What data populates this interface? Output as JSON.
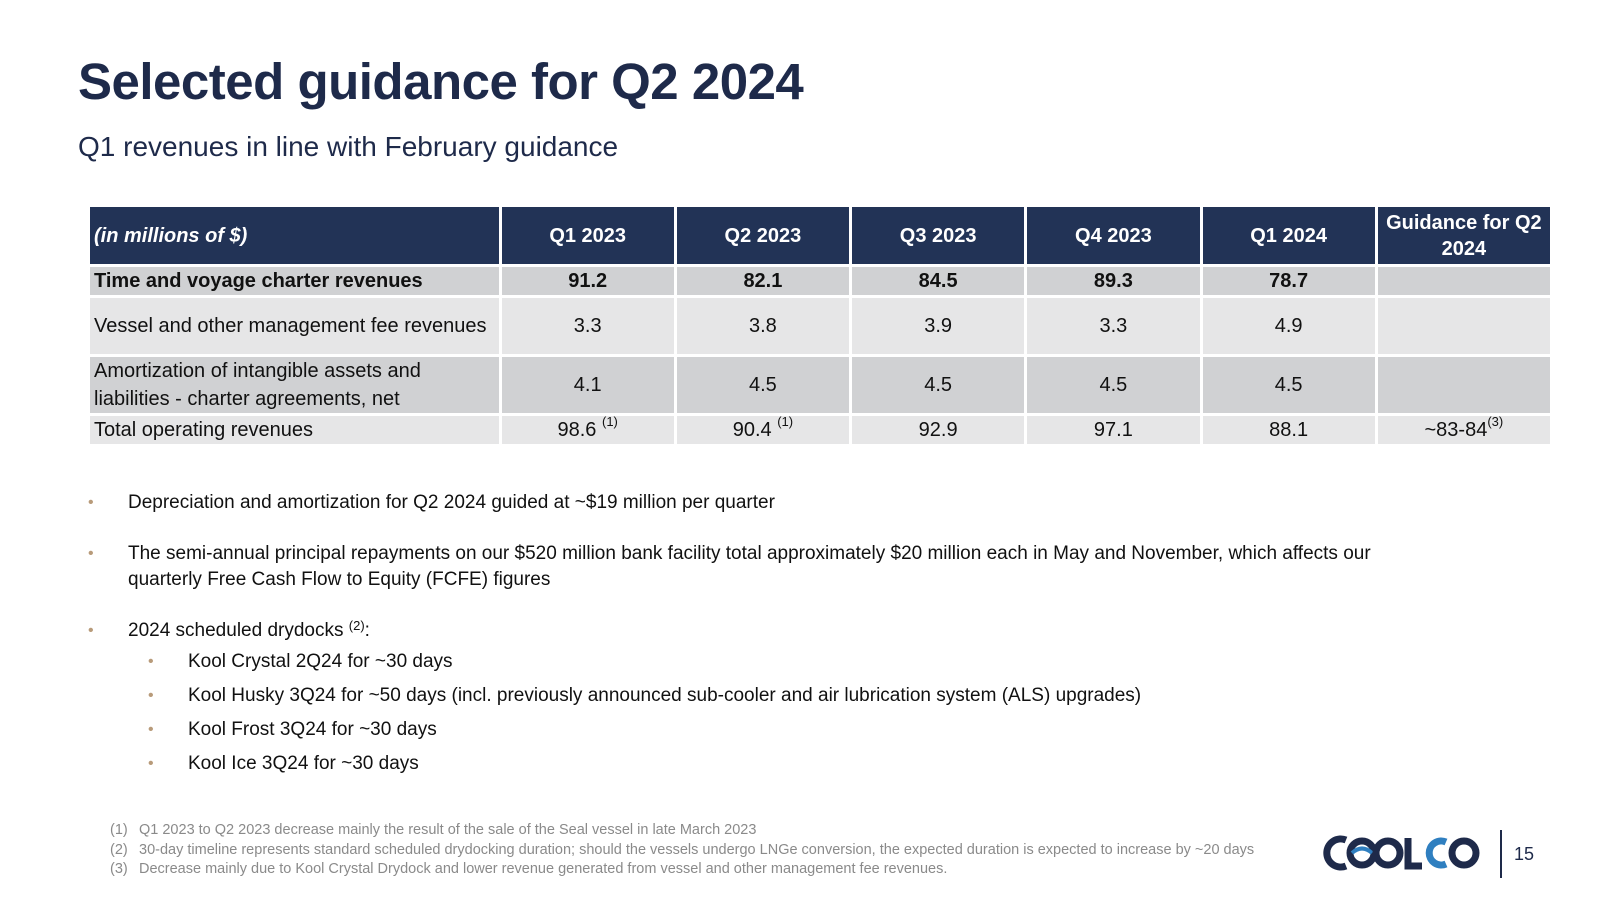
{
  "slide": {
    "title": "Selected guidance for Q2 2024",
    "subtitle": "Q1 revenues in line with February guidance",
    "page_number": "15"
  },
  "table": {
    "headers": [
      "(in millions of $)",
      "Q1 2023",
      "Q2 2023",
      "Q3 2023",
      "Q4 2023",
      "Q1 2024",
      "Guidance for Q2 2024"
    ],
    "rows": [
      {
        "label": "Time and voyage charter revenues",
        "values": [
          "91.2",
          "82.1",
          "84.5",
          "89.3",
          "78.7",
          ""
        ]
      },
      {
        "label": "Vessel and other management fee revenues",
        "values": [
          "3.3",
          "3.8",
          "3.9",
          "3.3",
          "4.9",
          ""
        ]
      },
      {
        "label": "Amortization of intangible assets and liabilities - charter agreements, net",
        "values": [
          "4.1",
          "4.5",
          "4.5",
          "4.5",
          "4.5",
          ""
        ]
      },
      {
        "label": "Total operating revenues",
        "values": [
          "98.6",
          "90.4",
          "92.9",
          "97.1",
          "88.1",
          "~83-84"
        ],
        "notes": [
          "(1)",
          "(1)",
          "",
          "",
          "",
          "(3)"
        ]
      }
    ]
  },
  "bullets": {
    "depreciation": "Depreciation and amortization for Q2 2024 guided at ~$19 million per quarter",
    "repayments": "The semi-annual principal repayments on our $520 million bank facility total approximately $20 million each in May and November, which affects our quarterly Free Cash Flow to Equity (FCFE) figures",
    "drydocks": "2024 scheduled drydocks",
    "drydocks_note": "(2)",
    "drydocks_suffix": ":",
    "drydock_items": [
      "Kool Crystal 2Q24 for ~30 days",
      "Kool Husky 3Q24 for ~50 days (incl. previously announced sub-cooler and air lubrication system (ALS) upgrades)",
      "Kool Frost 3Q24 for ~30 days",
      "Kool Ice 3Q24 for ~30 days"
    ]
  },
  "footnotes": [
    {
      "num": "(1)",
      "text": "Q1 2023 to Q2 2023 decrease mainly the result of the sale of the Seal vessel in late March 2023"
    },
    {
      "num": "(2)",
      "text": "30-day timeline represents standard scheduled drydocking duration; should the vessels undergo LNGe conversion, the expected duration is expected to increase by ~20 days"
    },
    {
      "num": "(3)",
      "text": "Decrease mainly due to Kool Crystal Drydock and lower revenue generated from vessel and other management fee revenues."
    }
  ],
  "logo": {
    "text": "COOLCO",
    "icon": "coolco-logo",
    "color": "#1e2a4a",
    "accent": "#2f7fc0"
  },
  "colors": {
    "header_bg": "#223356",
    "row_dark": "#d0d1d3",
    "row_light": "#e6e6e7",
    "bullet": "#b89b7a"
  }
}
